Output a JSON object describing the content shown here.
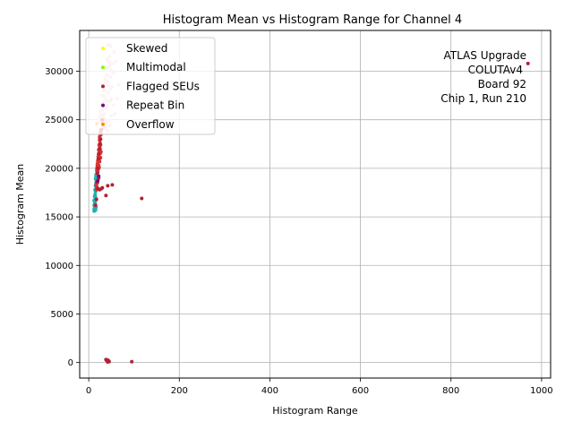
{
  "chart_data": {
    "type": "scatter",
    "title": "Histogram Mean vs Histogram Range for Channel 4",
    "xlabel": "Histogram Range",
    "ylabel": "Histogram Mean",
    "xlim": [
      -20,
      1020
    ],
    "ylim": [
      -1600,
      34200
    ],
    "xticks": [
      0,
      200,
      400,
      600,
      800,
      1000
    ],
    "yticks": [
      0,
      5000,
      10000,
      15000,
      20000,
      25000,
      30000
    ],
    "grid": true,
    "legend_position": "top-left",
    "annotation_lines": [
      "ATLAS Upgrade",
      "COLUTAv4",
      "Board 92",
      "Chip 1, Run 210"
    ],
    "series": [
      {
        "name": "Skewed",
        "color": "#ffff00",
        "points": []
      },
      {
        "name": "Multimodal",
        "color": "#7fff00",
        "points": []
      },
      {
        "name": "Flagged SEUs",
        "color": "#b22234",
        "points": [
          [
            970,
            30800
          ],
          [
            117,
            16900
          ],
          [
            38,
            17200
          ],
          [
            42,
            18200
          ],
          [
            52,
            18300
          ],
          [
            95,
            80
          ],
          [
            38,
            300
          ],
          [
            40,
            200
          ],
          [
            42,
            250
          ],
          [
            44,
            150
          ],
          [
            45,
            100
          ],
          [
            42,
            50
          ],
          [
            20,
            17900
          ],
          [
            24,
            17800
          ],
          [
            28,
            17900
          ],
          [
            30,
            18000
          ],
          [
            18,
            18600
          ],
          [
            22,
            19000
          ],
          [
            15,
            16200
          ],
          [
            17,
            16800
          ],
          [
            20,
            20000
          ],
          [
            22,
            21000
          ],
          [
            24,
            22000
          ],
          [
            26,
            23000
          ],
          [
            28,
            24000
          ],
          [
            30,
            25000
          ],
          [
            22,
            21500
          ],
          [
            25,
            22500
          ],
          [
            27,
            23500
          ],
          [
            19,
            19500
          ]
        ]
      },
      {
        "name": "Repeat Bin",
        "color": "#6a0d83",
        "points": [
          [
            22,
            19200
          ],
          [
            20,
            18700
          ]
        ]
      },
      {
        "name": "Overflow",
        "color": "#ff8c00",
        "points": [
          [
            18,
            24600
          ]
        ]
      },
      {
        "name": "",
        "color": "#f4c2c2",
        "points": [
          [
            42,
            32700
          ],
          [
            45,
            32700
          ],
          [
            48,
            32600
          ],
          [
            40,
            31300
          ],
          [
            42,
            31100
          ],
          [
            45,
            30900
          ],
          [
            47,
            30600
          ],
          [
            50,
            30100
          ],
          [
            55,
            29800
          ],
          [
            60,
            31000
          ],
          [
            38,
            30300
          ],
          [
            40,
            29600
          ],
          [
            42,
            29000
          ],
          [
            44,
            28500
          ],
          [
            48,
            28200
          ],
          [
            36,
            28800
          ],
          [
            34,
            28000
          ],
          [
            35,
            27400
          ],
          [
            38,
            27000
          ],
          [
            40,
            26500
          ],
          [
            45,
            26900
          ],
          [
            50,
            27100
          ],
          [
            32,
            26800
          ],
          [
            30,
            26000
          ],
          [
            28,
            25500
          ],
          [
            32,
            25200
          ],
          [
            36,
            25000
          ],
          [
            40,
            24700
          ],
          [
            44,
            24900
          ],
          [
            38,
            24300
          ],
          [
            34,
            24100
          ],
          [
            26,
            24800
          ],
          [
            55,
            26500
          ],
          [
            58,
            25600
          ],
          [
            62,
            27200
          ],
          [
            66,
            28600
          ],
          [
            52,
            28400
          ],
          [
            48,
            29400
          ],
          [
            44,
            30400
          ],
          [
            36,
            29200
          ],
          [
            30,
            27500
          ],
          [
            28,
            26600
          ],
          [
            26,
            25900
          ],
          [
            24,
            25300
          ],
          [
            46,
            31500
          ],
          [
            52,
            30800
          ],
          [
            56,
            32000
          ],
          [
            42,
            27800
          ],
          [
            38,
            26200
          ],
          [
            34,
            25600
          ],
          [
            30,
            24600
          ],
          [
            50,
            25400
          ],
          [
            46,
            24400
          ],
          [
            41,
            23900
          ]
        ]
      },
      {
        "name": "",
        "color": "#20b2aa",
        "points": [
          [
            12,
            15600
          ],
          [
            13,
            15800
          ],
          [
            14,
            15700
          ],
          [
            15,
            15900
          ],
          [
            16,
            16000
          ],
          [
            12,
            16200
          ],
          [
            13,
            16500
          ],
          [
            14,
            16800
          ],
          [
            15,
            17000
          ],
          [
            14,
            17300
          ],
          [
            15,
            17600
          ],
          [
            16,
            17900
          ],
          [
            15,
            18200
          ],
          [
            16,
            18500
          ],
          [
            17,
            18800
          ],
          [
            16,
            19100
          ],
          [
            17,
            19400
          ],
          [
            18,
            19700
          ],
          [
            13,
            16100
          ],
          [
            14,
            16400
          ],
          [
            12,
            15800
          ],
          [
            13,
            17100
          ],
          [
            14,
            17800
          ],
          [
            15,
            18900
          ],
          [
            16,
            19300
          ],
          [
            17,
            18300
          ],
          [
            12,
            16700
          ],
          [
            13,
            15900
          ],
          [
            14,
            16600
          ],
          [
            15,
            15700
          ]
        ]
      },
      {
        "name": "",
        "color": "#dc3232",
        "points": [
          [
            18,
            19800
          ],
          [
            19,
            20200
          ],
          [
            20,
            20600
          ],
          [
            21,
            21000
          ],
          [
            22,
            21400
          ],
          [
            23,
            21800
          ],
          [
            24,
            22200
          ],
          [
            25,
            22600
          ],
          [
            26,
            23000
          ],
          [
            25,
            23400
          ],
          [
            26,
            23800
          ],
          [
            24,
            22900
          ],
          [
            23,
            22400
          ],
          [
            22,
            21900
          ],
          [
            21,
            21200
          ],
          [
            20,
            20800
          ],
          [
            19,
            20400
          ],
          [
            18,
            20000
          ],
          [
            24,
            23200
          ],
          [
            25,
            22000
          ],
          [
            23,
            20900
          ],
          [
            22,
            20300
          ],
          [
            21,
            19900
          ],
          [
            20,
            19600
          ],
          [
            26,
            22400
          ],
          [
            27,
            21700
          ],
          [
            26,
            21100
          ],
          [
            25,
            21500
          ],
          [
            24,
            20700
          ],
          [
            23,
            20100
          ],
          [
            17,
            17800
          ],
          [
            18,
            18100
          ],
          [
            19,
            18500
          ],
          [
            20,
            17900
          ],
          [
            16,
            18300
          ]
        ]
      }
    ]
  }
}
